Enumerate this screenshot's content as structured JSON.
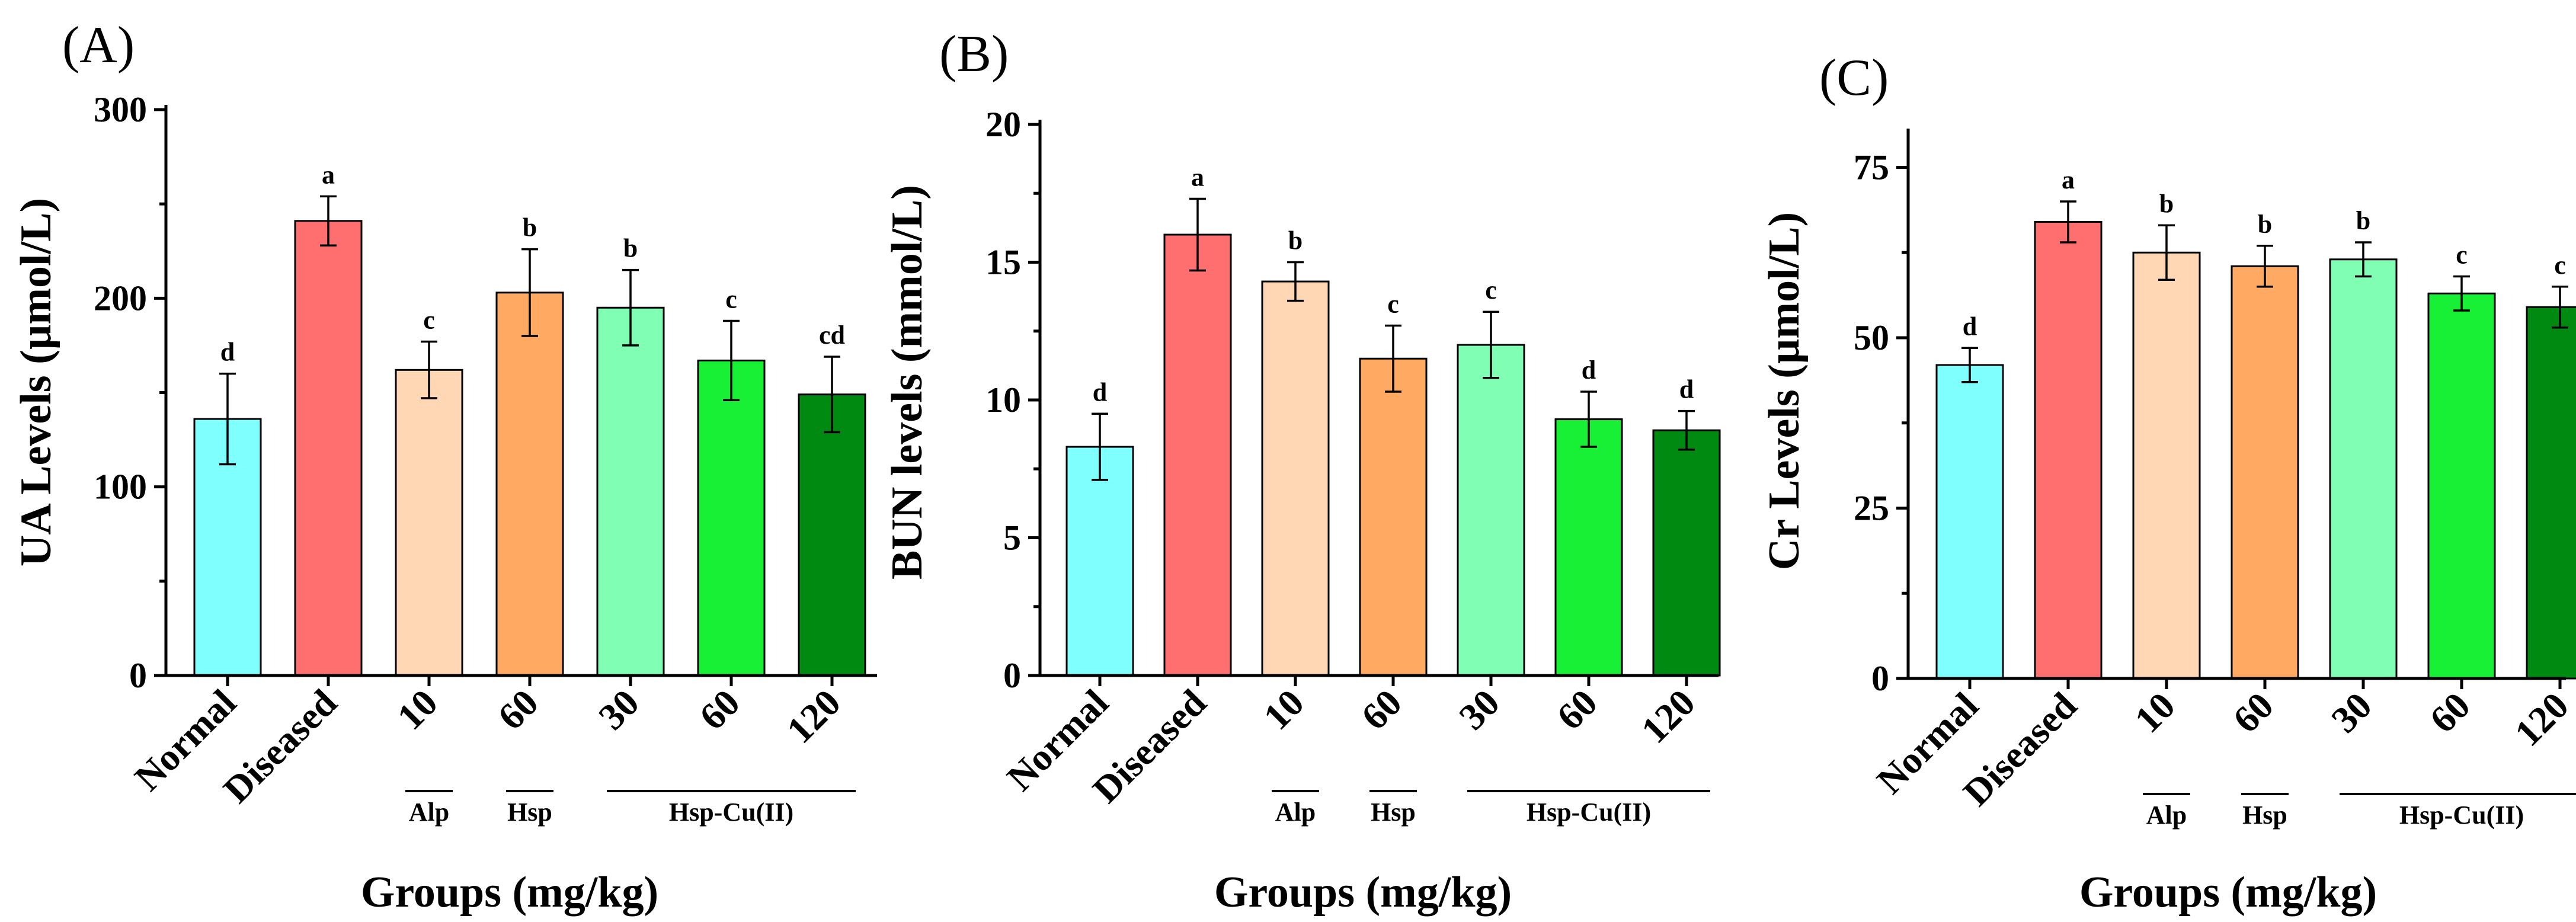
{
  "colors": {
    "normal": "#80FFFF",
    "diseased": "#FF6F6F",
    "alp": "#FFD7B4",
    "hsp": "#FFA962",
    "hspcu30": "#80FFB4",
    "hspcu60": "#17F034",
    "hspcu120": "#008A12"
  },
  "chart_data": [
    {
      "panel_label": "(A)",
      "type": "bar",
      "title": "",
      "xlabel": "Groups (mg/kg)",
      "ylabel": "UA Levels (µmol/L)",
      "ylim": [
        0,
        300
      ],
      "yticks": [
        0,
        100,
        200,
        300
      ],
      "categories": [
        "Normal",
        "Diseased",
        "10",
        "60",
        "30",
        "60",
        "120"
      ],
      "groups": [
        {
          "label": "Alp",
          "from": 2,
          "to": 2
        },
        {
          "label": "Hsp",
          "from": 3,
          "to": 3
        },
        {
          "label": "Hsp-Cu(II)",
          "from": 4,
          "to": 6
        }
      ],
      "values": [
        136,
        241,
        162,
        203,
        195,
        167,
        149
      ],
      "errors": [
        24,
        13,
        15,
        23,
        20,
        21,
        20
      ],
      "significance": [
        "d",
        "a",
        "c",
        "b",
        "b",
        "c",
        "cd"
      ],
      "colors": [
        "#80FFFF",
        "#FF6F6F",
        "#FFD7B4",
        "#FFA962",
        "#80FFB4",
        "#17F034",
        "#008A12"
      ]
    },
    {
      "panel_label": "(B)",
      "type": "bar",
      "title": "",
      "xlabel": "Groups (mg/kg)",
      "ylabel": "BUN levels (mmol/L)",
      "ylim": [
        0,
        20
      ],
      "yticks": [
        0,
        5,
        10,
        15,
        20
      ],
      "categories": [
        "Normal",
        "Diseased",
        "10",
        "60",
        "30",
        "60",
        "120"
      ],
      "groups": [
        {
          "label": "Alp",
          "from": 2,
          "to": 2
        },
        {
          "label": "Hsp",
          "from": 3,
          "to": 3
        },
        {
          "label": "Hsp-Cu(II)",
          "from": 4,
          "to": 6
        }
      ],
      "values": [
        8.3,
        16.0,
        14.3,
        11.5,
        12.0,
        9.3,
        8.9
      ],
      "errors": [
        1.2,
        1.3,
        0.7,
        1.2,
        1.2,
        1.0,
        0.7
      ],
      "significance": [
        "d",
        "a",
        "b",
        "c",
        "c",
        "d",
        "d"
      ],
      "colors": [
        "#80FFFF",
        "#FF6F6F",
        "#FFD7B4",
        "#FFA962",
        "#80FFB4",
        "#17F034",
        "#008A12"
      ]
    },
    {
      "panel_label": "(C)",
      "type": "bar",
      "title": "",
      "xlabel": "Groups (mg/kg)",
      "ylabel": "Cr Levels (µmol/L)",
      "ylim": [
        0,
        80
      ],
      "yticks": [
        0,
        25,
        50,
        75
      ],
      "categories": [
        "Normal",
        "Diseased",
        "10",
        "60",
        "30",
        "60",
        "120"
      ],
      "groups": [
        {
          "label": "Alp",
          "from": 2,
          "to": 2
        },
        {
          "label": "Hsp",
          "from": 3,
          "to": 3
        },
        {
          "label": "Hsp-Cu(II)",
          "from": 4,
          "to": 6
        }
      ],
      "values": [
        46,
        67,
        62.5,
        60.5,
        61.5,
        56.5,
        54.5
      ],
      "errors": [
        2.5,
        3.0,
        4.0,
        3.0,
        2.5,
        2.5,
        3.0
      ],
      "significance": [
        "d",
        "a",
        "b",
        "b",
        "b",
        "c",
        "c"
      ],
      "colors": [
        "#80FFFF",
        "#FF6F6F",
        "#FFD7B4",
        "#FFA962",
        "#80FFB4",
        "#17F034",
        "#008A12"
      ]
    }
  ]
}
